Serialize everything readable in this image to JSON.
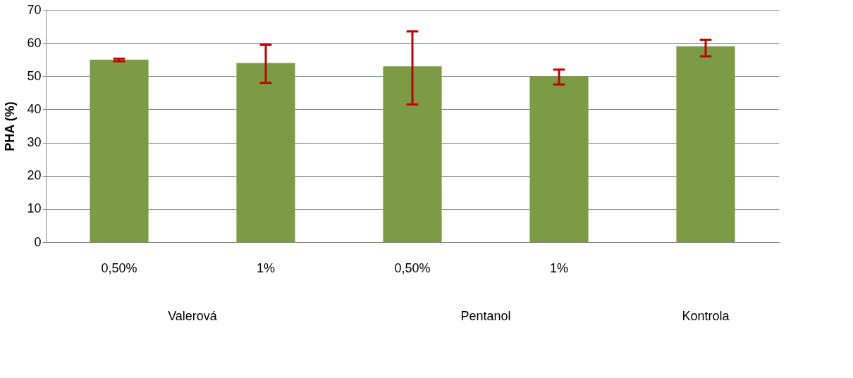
{
  "chart_data": {
    "type": "bar",
    "ylabel": "PHA (%)",
    "categories": [
      "0,50%",
      "1%",
      "0,50%",
      "1%",
      null
    ],
    "values": [
      55,
      54,
      53,
      50,
      59
    ],
    "errors": [
      [
        54.5,
        55.3
      ],
      [
        48,
        59.5
      ],
      [
        41.5,
        63.5
      ],
      [
        47.5,
        52
      ],
      [
        56,
        61
      ]
    ],
    "color": "#7d9b45",
    "ylim": [
      0,
      70
    ],
    "yticks": [
      0,
      10,
      20,
      30,
      40,
      50,
      60,
      70
    ],
    "grid": "y",
    "annotations": [
      "Valerová",
      "Pentanol",
      "Kontrola"
    ]
  }
}
